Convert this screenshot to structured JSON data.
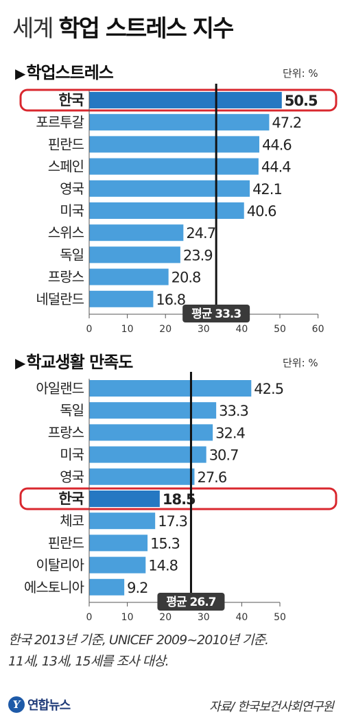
{
  "title": {
    "prefix": "세계",
    "main": "학업 스트레스 지수"
  },
  "footnote": {
    "line1": "한국 2013년 기준, UNICEF 2009~2010년 기준.",
    "line2": "11세, 13세, 15세를 조사 대상."
  },
  "footer": {
    "logo_text": "연합뉴스",
    "source": "자료/ 한국보건사회연구원"
  },
  "colors": {
    "bar": "#4a9fdc",
    "highlight_bar": "#2578c2",
    "highlight_box": "#d9272e",
    "avg_line": "#111111",
    "avg_badge": "#3a3a3a"
  },
  "chart_data": [
    {
      "type": "bar",
      "orientation": "horizontal",
      "title": "학업스트레스",
      "unit": "단위: %",
      "categories": [
        "한국",
        "포르투갈",
        "핀란드",
        "스페인",
        "영국",
        "미국",
        "스위스",
        "독일",
        "프랑스",
        "네덜란드"
      ],
      "values": [
        50.5,
        47.2,
        44.6,
        44.4,
        42.1,
        40.6,
        24.7,
        23.9,
        20.8,
        16.8
      ],
      "value_labels": [
        "50.5",
        "47.2",
        "44.6",
        "44.4",
        "42.1",
        "40.6",
        "24.7",
        "23.9",
        "20.8",
        "16.8"
      ],
      "highlight": "한국",
      "average": {
        "value": 33.3,
        "label": "평균 33.3"
      },
      "xlim": [
        0,
        60
      ],
      "xticks": [
        0,
        10,
        20,
        30,
        40,
        50,
        60
      ],
      "grid": false
    },
    {
      "type": "bar",
      "orientation": "horizontal",
      "title": "학교생활 만족도",
      "unit": "단위: %",
      "categories": [
        "아일랜드",
        "독일",
        "프랑스",
        "미국",
        "영국",
        "한국",
        "체코",
        "핀란드",
        "이탈리아",
        "에스토니아"
      ],
      "values": [
        42.5,
        33.3,
        32.4,
        30.7,
        27.6,
        18.5,
        17.3,
        15.3,
        14.8,
        9.2
      ],
      "value_labels": [
        "42.5",
        "33.3",
        "32.4",
        "30.7",
        "27.6",
        "18.5",
        "17.3",
        "15.3",
        "14.8",
        "9.2"
      ],
      "highlight": "한국",
      "average": {
        "value": 26.7,
        "label": "평균 26.7"
      },
      "xlim": [
        0,
        50
      ],
      "xticks": [
        0,
        10,
        20,
        30,
        40,
        50
      ],
      "grid": false
    }
  ]
}
